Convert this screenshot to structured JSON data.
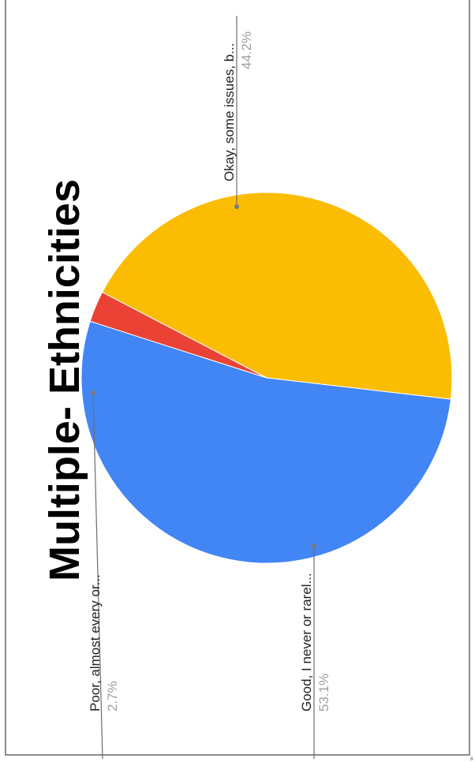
{
  "chart_data": {
    "type": "pie",
    "title": "Multiple- Ethnicities",
    "orientation": "rotated-90-ccw",
    "slices": [
      {
        "label": "Okay, some issues, b...",
        "percent_label": "44.2%",
        "value": 44.2,
        "color": "#FBBC04"
      },
      {
        "label": "Good, I never or rarel...",
        "percent_label": "53.1%",
        "value": 53.1,
        "color": "#4285F4"
      },
      {
        "label": "Poor, almost every or...",
        "percent_label": "2.7%",
        "value": 2.7,
        "color": "#EA4335"
      }
    ]
  },
  "corner_mark": "ð"
}
